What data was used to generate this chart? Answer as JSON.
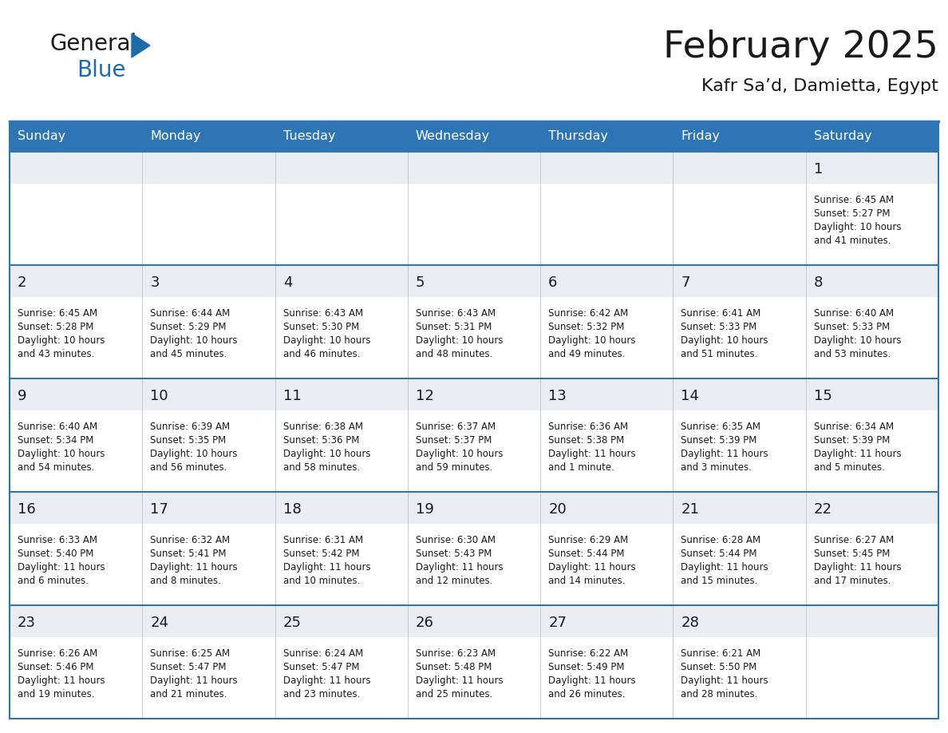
{
  "title": "February 2025",
  "subtitle": "Kafr Sa’d, Damietta, Egypt",
  "days_of_week": [
    "Sunday",
    "Monday",
    "Tuesday",
    "Wednesday",
    "Thursday",
    "Friday",
    "Saturday"
  ],
  "header_bg": "#2E75B6",
  "header_text": "#FFFFFF",
  "cell_bg_top": "#E8EDF2",
  "cell_bg_bottom": "#FFFFFF",
  "border_color": "#2E75B6",
  "day_num_color": "#1a1a1a",
  "text_color": "#1a1a1a",
  "grid_line_color": "#B0B8C4",
  "calendar": [
    [
      null,
      null,
      null,
      null,
      null,
      null,
      {
        "day": "1",
        "sunrise": "6:45 AM",
        "sunset": "5:27 PM",
        "daylight_line1": "Daylight: 10 hours",
        "daylight_line2": "and 41 minutes."
      }
    ],
    [
      {
        "day": "2",
        "sunrise": "6:45 AM",
        "sunset": "5:28 PM",
        "daylight_line1": "Daylight: 10 hours",
        "daylight_line2": "and 43 minutes."
      },
      {
        "day": "3",
        "sunrise": "6:44 AM",
        "sunset": "5:29 PM",
        "daylight_line1": "Daylight: 10 hours",
        "daylight_line2": "and 45 minutes."
      },
      {
        "day": "4",
        "sunrise": "6:43 AM",
        "sunset": "5:30 PM",
        "daylight_line1": "Daylight: 10 hours",
        "daylight_line2": "and 46 minutes."
      },
      {
        "day": "5",
        "sunrise": "6:43 AM",
        "sunset": "5:31 PM",
        "daylight_line1": "Daylight: 10 hours",
        "daylight_line2": "and 48 minutes."
      },
      {
        "day": "6",
        "sunrise": "6:42 AM",
        "sunset": "5:32 PM",
        "daylight_line1": "Daylight: 10 hours",
        "daylight_line2": "and 49 minutes."
      },
      {
        "day": "7",
        "sunrise": "6:41 AM",
        "sunset": "5:33 PM",
        "daylight_line1": "Daylight: 10 hours",
        "daylight_line2": "and 51 minutes."
      },
      {
        "day": "8",
        "sunrise": "6:40 AM",
        "sunset": "5:33 PM",
        "daylight_line1": "Daylight: 10 hours",
        "daylight_line2": "and 53 minutes."
      }
    ],
    [
      {
        "day": "9",
        "sunrise": "6:40 AM",
        "sunset": "5:34 PM",
        "daylight_line1": "Daylight: 10 hours",
        "daylight_line2": "and 54 minutes."
      },
      {
        "day": "10",
        "sunrise": "6:39 AM",
        "sunset": "5:35 PM",
        "daylight_line1": "Daylight: 10 hours",
        "daylight_line2": "and 56 minutes."
      },
      {
        "day": "11",
        "sunrise": "6:38 AM",
        "sunset": "5:36 PM",
        "daylight_line1": "Daylight: 10 hours",
        "daylight_line2": "and 58 minutes."
      },
      {
        "day": "12",
        "sunrise": "6:37 AM",
        "sunset": "5:37 PM",
        "daylight_line1": "Daylight: 10 hours",
        "daylight_line2": "and 59 minutes."
      },
      {
        "day": "13",
        "sunrise": "6:36 AM",
        "sunset": "5:38 PM",
        "daylight_line1": "Daylight: 11 hours",
        "daylight_line2": "and 1 minute."
      },
      {
        "day": "14",
        "sunrise": "6:35 AM",
        "sunset": "5:39 PM",
        "daylight_line1": "Daylight: 11 hours",
        "daylight_line2": "and 3 minutes."
      },
      {
        "day": "15",
        "sunrise": "6:34 AM",
        "sunset": "5:39 PM",
        "daylight_line1": "Daylight: 11 hours",
        "daylight_line2": "and 5 minutes."
      }
    ],
    [
      {
        "day": "16",
        "sunrise": "6:33 AM",
        "sunset": "5:40 PM",
        "daylight_line1": "Daylight: 11 hours",
        "daylight_line2": "and 6 minutes."
      },
      {
        "day": "17",
        "sunrise": "6:32 AM",
        "sunset": "5:41 PM",
        "daylight_line1": "Daylight: 11 hours",
        "daylight_line2": "and 8 minutes."
      },
      {
        "day": "18",
        "sunrise": "6:31 AM",
        "sunset": "5:42 PM",
        "daylight_line1": "Daylight: 11 hours",
        "daylight_line2": "and 10 minutes."
      },
      {
        "day": "19",
        "sunrise": "6:30 AM",
        "sunset": "5:43 PM",
        "daylight_line1": "Daylight: 11 hours",
        "daylight_line2": "and 12 minutes."
      },
      {
        "day": "20",
        "sunrise": "6:29 AM",
        "sunset": "5:44 PM",
        "daylight_line1": "Daylight: 11 hours",
        "daylight_line2": "and 14 minutes."
      },
      {
        "day": "21",
        "sunrise": "6:28 AM",
        "sunset": "5:44 PM",
        "daylight_line1": "Daylight: 11 hours",
        "daylight_line2": "and 15 minutes."
      },
      {
        "day": "22",
        "sunrise": "6:27 AM",
        "sunset": "5:45 PM",
        "daylight_line1": "Daylight: 11 hours",
        "daylight_line2": "and 17 minutes."
      }
    ],
    [
      {
        "day": "23",
        "sunrise": "6:26 AM",
        "sunset": "5:46 PM",
        "daylight_line1": "Daylight: 11 hours",
        "daylight_line2": "and 19 minutes."
      },
      {
        "day": "24",
        "sunrise": "6:25 AM",
        "sunset": "5:47 PM",
        "daylight_line1": "Daylight: 11 hours",
        "daylight_line2": "and 21 minutes."
      },
      {
        "day": "25",
        "sunrise": "6:24 AM",
        "sunset": "5:47 PM",
        "daylight_line1": "Daylight: 11 hours",
        "daylight_line2": "and 23 minutes."
      },
      {
        "day": "26",
        "sunrise": "6:23 AM",
        "sunset": "5:48 PM",
        "daylight_line1": "Daylight: 11 hours",
        "daylight_line2": "and 25 minutes."
      },
      {
        "day": "27",
        "sunrise": "6:22 AM",
        "sunset": "5:49 PM",
        "daylight_line1": "Daylight: 11 hours",
        "daylight_line2": "and 26 minutes."
      },
      {
        "day": "28",
        "sunrise": "6:21 AM",
        "sunset": "5:50 PM",
        "daylight_line1": "Daylight: 11 hours",
        "daylight_line2": "and 28 minutes."
      },
      null
    ]
  ],
  "logo_general_color": "#1a1a1a",
  "logo_blue_color": "#1E6BAA",
  "logo_triangle_color": "#1E6BAA"
}
